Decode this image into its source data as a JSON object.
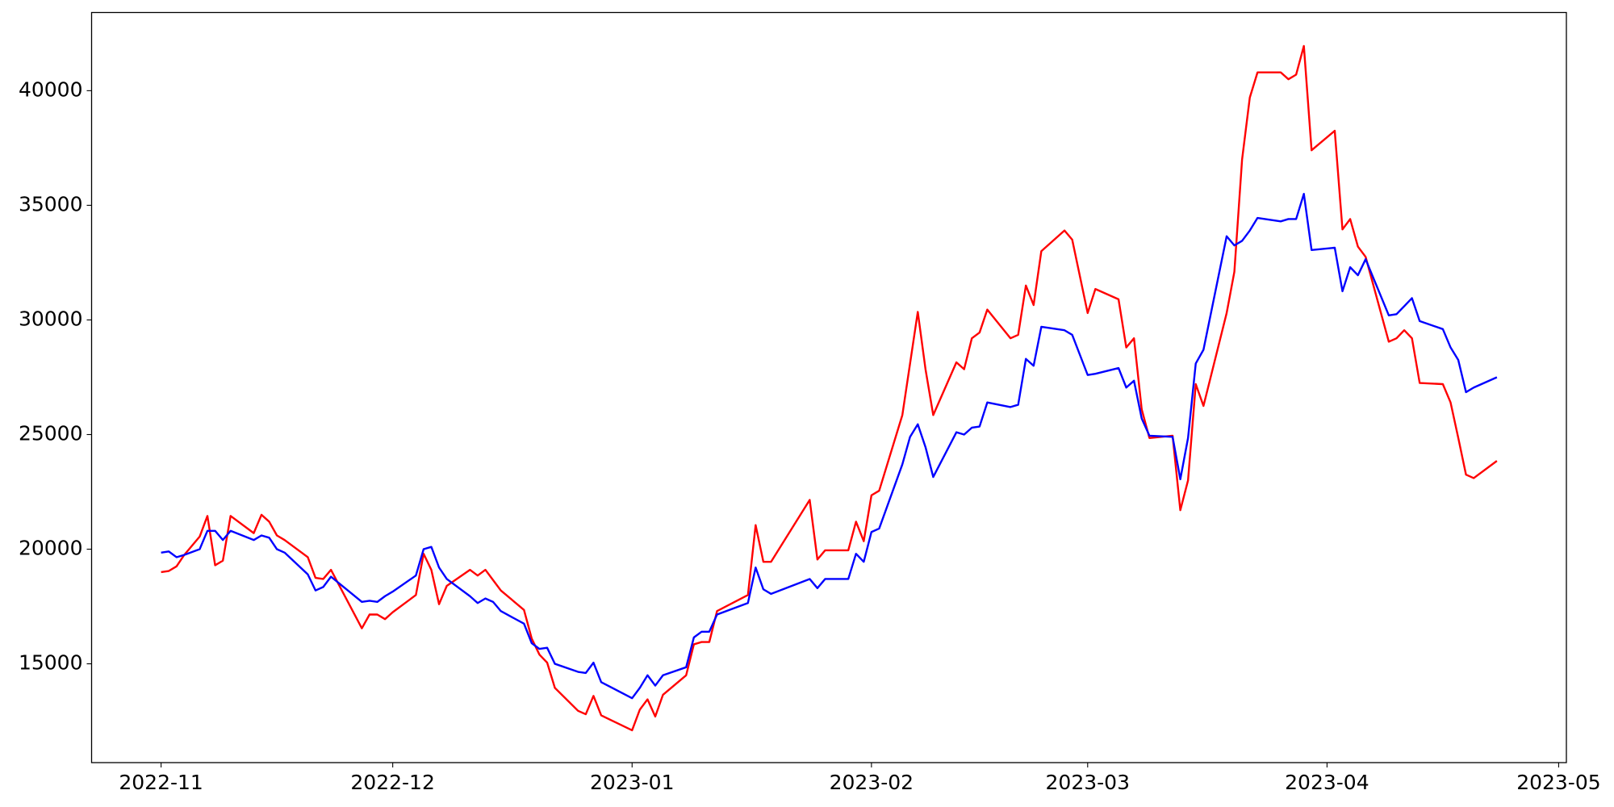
{
  "chart_data": {
    "type": "line",
    "x": [
      "2022-11-01",
      "2022-11-02",
      "2022-11-03",
      "2022-11-04",
      "2022-11-06",
      "2022-11-07",
      "2022-11-08",
      "2022-11-09",
      "2022-11-10",
      "2022-11-13",
      "2022-11-14",
      "2022-11-15",
      "2022-11-16",
      "2022-11-17",
      "2022-11-20",
      "2022-11-21",
      "2022-11-22",
      "2022-11-23",
      "2022-11-27",
      "2022-11-28",
      "2022-11-29",
      "2022-11-30",
      "2022-12-01",
      "2022-12-04",
      "2022-12-05",
      "2022-12-06",
      "2022-12-07",
      "2022-12-08",
      "2022-12-11",
      "2022-12-12",
      "2022-12-13",
      "2022-12-14",
      "2022-12-15",
      "2022-12-18",
      "2022-12-19",
      "2022-12-20",
      "2022-12-21",
      "2022-12-22",
      "2022-12-25",
      "2022-12-26",
      "2022-12-27",
      "2022-12-28",
      "2023-01-01",
      "2023-01-02",
      "2023-01-03",
      "2023-01-04",
      "2023-01-05",
      "2023-01-08",
      "2023-01-09",
      "2023-01-10",
      "2023-01-11",
      "2023-01-12",
      "2023-01-16",
      "2023-01-17",
      "2023-01-18",
      "2023-01-19",
      "2023-01-24",
      "2023-01-25",
      "2023-01-26",
      "2023-01-29",
      "2023-01-30",
      "2023-01-31",
      "2023-02-01",
      "2023-02-02",
      "2023-02-05",
      "2023-02-06",
      "2023-02-07",
      "2023-02-08",
      "2023-02-09",
      "2023-02-12",
      "2023-02-13",
      "2023-02-14",
      "2023-02-15",
      "2023-02-16",
      "2023-02-19",
      "2023-02-20",
      "2023-02-21",
      "2023-02-22",
      "2023-02-23",
      "2023-02-26",
      "2023-02-27",
      "2023-03-01",
      "2023-03-02",
      "2023-03-05",
      "2023-03-06",
      "2023-03-07",
      "2023-03-08",
      "2023-03-09",
      "2023-03-12",
      "2023-03-13",
      "2023-03-14",
      "2023-03-15",
      "2023-03-16",
      "2023-03-19",
      "2023-03-20",
      "2023-03-21",
      "2023-03-22",
      "2023-03-23",
      "2023-03-26",
      "2023-03-27",
      "2023-03-28",
      "2023-03-29",
      "2023-03-30",
      "2023-04-02",
      "2023-04-03",
      "2023-04-04",
      "2023-04-05",
      "2023-04-06",
      "2023-04-09",
      "2023-04-10",
      "2023-04-11",
      "2023-04-12",
      "2023-04-13",
      "2023-04-16",
      "2023-04-17",
      "2023-04-18",
      "2023-04-19",
      "2023-04-20",
      "2023-04-23"
    ],
    "series": [
      {
        "color": "#ff0000",
        "values": [
          19000,
          19050,
          19250,
          19750,
          20550,
          21450,
          19300,
          19500,
          21450,
          20700,
          21500,
          21200,
          20600,
          20400,
          19650,
          18750,
          18700,
          19100,
          16550,
          17150,
          17150,
          16950,
          17250,
          18000,
          19800,
          19100,
          17600,
          18400,
          19100,
          18850,
          19100,
          18650,
          18200,
          17350,
          16100,
          15400,
          15050,
          13950,
          12950,
          12800,
          13600,
          12750,
          12100,
          13000,
          13450,
          12700,
          13650,
          14500,
          15850,
          15950,
          15950,
          17300,
          18000,
          21050,
          19450,
          19450,
          22150,
          19550,
          19950,
          19950,
          21200,
          20350,
          22350,
          22550,
          25850,
          28100,
          30350,
          27850,
          25850,
          28150,
          27850,
          29200,
          29450,
          30450,
          29200,
          29350,
          31500,
          30650,
          33000,
          33900,
          33500,
          30300,
          31350,
          30900,
          28800,
          29200,
          26100,
          24850,
          24950,
          21700,
          23000,
          27200,
          26250,
          30300,
          32100,
          37000,
          39700,
          40800,
          40800,
          40500,
          40700,
          41950,
          37400,
          38250,
          33950,
          34400,
          33200,
          32750,
          29050,
          29200,
          29550,
          29200,
          27250,
          27200,
          26400,
          24850,
          23250,
          23100,
          23850
        ]
      },
      {
        "color": "#0000ff",
        "values": [
          19850,
          19900,
          19650,
          19750,
          20000,
          20800,
          20800,
          20400,
          20800,
          20400,
          20600,
          20500,
          20000,
          19850,
          18900,
          18200,
          18350,
          18800,
          17700,
          17750,
          17700,
          17950,
          18150,
          18850,
          20000,
          20100,
          19200,
          18700,
          17950,
          17650,
          17850,
          17700,
          17300,
          16750,
          15900,
          15650,
          15700,
          15000,
          14650,
          14600,
          15050,
          14200,
          13500,
          13950,
          14500,
          14050,
          14500,
          14850,
          16150,
          16400,
          16400,
          17150,
          17650,
          19200,
          18250,
          18050,
          18700,
          18300,
          18700,
          18700,
          19800,
          19450,
          20750,
          20900,
          23700,
          24900,
          25450,
          24450,
          23150,
          25100,
          25000,
          25300,
          25350,
          26400,
          26200,
          26300,
          28300,
          28000,
          29700,
          29550,
          29350,
          27600,
          27650,
          27900,
          27050,
          27350,
          25700,
          24950,
          24900,
          23050,
          24850,
          28100,
          28700,
          33650,
          33250,
          33450,
          33900,
          34450,
          34300,
          34400,
          34400,
          35500,
          33050,
          33150,
          31250,
          32300,
          31950,
          32650,
          30200,
          30250,
          30600,
          30950,
          29950,
          29600,
          28800,
          28250,
          26850,
          27050,
          27500
        ]
      }
    ],
    "xlim": [
      "2022-10-23",
      "2023-05-02"
    ],
    "xticks": [
      {
        "value": "2022-11-01",
        "label": "2022-11"
      },
      {
        "value": "2022-12-01",
        "label": "2022-12"
      },
      {
        "value": "2023-01-01",
        "label": "2023-01"
      },
      {
        "value": "2023-02-01",
        "label": "2023-02"
      },
      {
        "value": "2023-03-01",
        "label": "2023-03"
      },
      {
        "value": "2023-04-01",
        "label": "2023-04"
      },
      {
        "value": "2023-05-01",
        "label": "2023-05"
      }
    ],
    "ylim": [
      10690,
      43410
    ],
    "yticks": [
      15000,
      20000,
      25000,
      30000,
      35000,
      40000
    ],
    "grid": false
  }
}
